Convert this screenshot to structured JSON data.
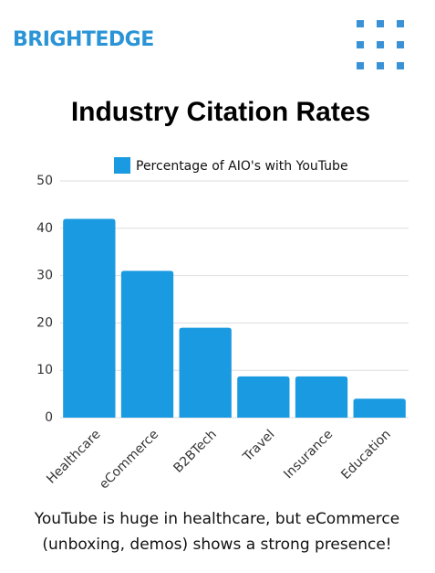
{
  "brand": "BRIGHTEDGE",
  "chart_data": {
    "type": "bar",
    "title": "Industry Citation Rates",
    "categories": [
      "Healthcare",
      "eCommerce",
      "B2BTech",
      "Travel",
      "Insurance",
      "Education"
    ],
    "series": [
      {
        "name": "Percentage of AIO's with YouTube",
        "color": "#1a9ae0",
        "values": [
          42,
          31,
          19,
          8.7,
          8.7,
          4
        ]
      }
    ],
    "ylim": [
      0,
      50
    ],
    "yticks": [
      0,
      10,
      20,
      30,
      40,
      50
    ],
    "grid": true,
    "legend": "top"
  },
  "footer": [
    "YouTube is huge in healthcare, but eCommerce",
    "(unboxing, demos) shows a strong presence!"
  ]
}
